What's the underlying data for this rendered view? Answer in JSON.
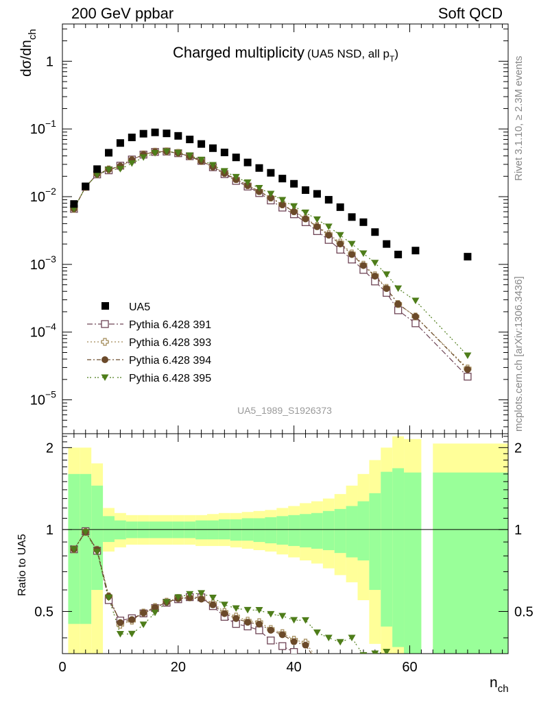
{
  "header": {
    "left": "200 GeV ppbar",
    "right": "Soft QCD",
    "rivet": "Rivet 3.1.10, ≥ 2.3M events",
    "mcplots": "mcplots.cern.ch [arXiv:1306.3436]",
    "analysis": "UA5_1989_S1926373"
  },
  "chart_data": {
    "type": "scatter",
    "title": "Charged multiplicity",
    "title_note": "(UA5 NSD, all p",
    "title_note_sub": "T",
    "title_note_end": ")",
    "main_ylabel": "dσ/dn",
    "main_ylabel_sub": "ch",
    "xlabel": "n",
    "xlabel_sub": "ch",
    "ratio_ylabel": "Ratio to UA5",
    "xlim": [
      0,
      77
    ],
    "main_ylim_log10": [
      -5.5,
      0.55
    ],
    "ratio_ylim": [
      0.35,
      2.25
    ],
    "x_ticks": [
      "0",
      "20",
      "40",
      "60"
    ],
    "x_tick_values": [
      0,
      20,
      40,
      60
    ],
    "main_y_ticks": [
      {
        "v": 0,
        "base": "1",
        "exp": ""
      },
      {
        "v": -1,
        "base": "10",
        "exp": "−1"
      },
      {
        "v": -2,
        "base": "10",
        "exp": "−2"
      },
      {
        "v": -3,
        "base": "10",
        "exp": "−3"
      },
      {
        "v": -4,
        "base": "10",
        "exp": "−4"
      },
      {
        "v": -5,
        "base": "10",
        "exp": "−5"
      }
    ],
    "ratio_y_ticks": [
      {
        "v": 0.5,
        "label": "0.5"
      },
      {
        "v": 1,
        "label": "1"
      },
      {
        "v": 2,
        "label": "2"
      }
    ],
    "data": {
      "name": "UA5",
      "x": [
        2,
        4,
        6,
        8,
        10,
        12,
        14,
        16,
        18,
        20,
        22,
        24,
        26,
        28,
        30,
        32,
        34,
        36,
        38,
        40,
        42,
        44,
        46,
        48,
        50,
        52,
        54,
        56,
        58,
        61,
        70
      ],
      "y": [
        0.0078,
        0.0142,
        0.0255,
        0.0445,
        0.062,
        0.075,
        0.085,
        0.089,
        0.086,
        0.079,
        0.07,
        0.06,
        0.052,
        0.045,
        0.038,
        0.032,
        0.0265,
        0.0225,
        0.0185,
        0.0155,
        0.0125,
        0.011,
        0.009,
        0.007,
        0.005,
        0.0042,
        0.003,
        0.002,
        0.0014,
        0.0016,
        0.0013
      ]
    },
    "series": [
      {
        "name": "Pythia 6.428 391",
        "color": "#6d4354",
        "marker": "open-square",
        "dash": "8,3,2,3",
        "x": [
          2,
          4,
          6,
          8,
          10,
          12,
          14,
          16,
          18,
          20,
          22,
          24,
          26,
          28,
          30,
          32,
          34,
          36,
          38,
          40,
          42,
          44,
          46,
          48,
          50,
          52,
          54,
          56,
          58,
          61,
          70
        ],
        "y": [
          0.0066,
          0.014,
          0.0213,
          0.0245,
          0.0287,
          0.0354,
          0.0418,
          0.0458,
          0.0463,
          0.0438,
          0.0395,
          0.0338,
          0.0272,
          0.0215,
          0.0171,
          0.0141,
          0.0113,
          0.0088,
          0.0069,
          0.0055,
          0.0042,
          0.0031,
          0.0023,
          0.00165,
          0.00118,
          0.00083,
          0.00056,
          0.00038,
          0.00021,
          0.000135,
          2.2e-05
        ]
      },
      {
        "name": "Pythia 6.428 393",
        "color": "#a08855",
        "marker": "open-cross",
        "dash": "2,3",
        "x": [
          2,
          4,
          6,
          8,
          10,
          12,
          14,
          16,
          18,
          20,
          22,
          24,
          26,
          28,
          30,
          32,
          34,
          36,
          38,
          40,
          42,
          44,
          46,
          48,
          50,
          52,
          54,
          56,
          58,
          61,
          70
        ],
        "y": [
          0.0066,
          0.0139,
          0.0215,
          0.0253,
          0.0277,
          0.0347,
          0.0421,
          0.0462,
          0.0467,
          0.0443,
          0.0395,
          0.0336,
          0.0279,
          0.0224,
          0.0182,
          0.0148,
          0.0121,
          0.0097,
          0.0077,
          0.0061,
          0.0048,
          0.0037,
          0.0028,
          0.0021,
          0.00145,
          0.00099,
          0.00069,
          0.00045,
          0.00026,
          0.00017,
          2.9e-05
        ]
      },
      {
        "name": "Pythia 6.428 394",
        "color": "#6b4a2a",
        "marker": "filled-circle",
        "dash": "6,3,2,3",
        "x": [
          2,
          4,
          6,
          8,
          10,
          12,
          14,
          16,
          18,
          20,
          22,
          24,
          26,
          28,
          30,
          32,
          34,
          36,
          38,
          40,
          42,
          44,
          46,
          48,
          50,
          52,
          54,
          56,
          58,
          61,
          70
        ],
        "y": [
          0.0066,
          0.0139,
          0.0215,
          0.0253,
          0.0282,
          0.035,
          0.042,
          0.046,
          0.0465,
          0.044,
          0.0393,
          0.0333,
          0.0275,
          0.0221,
          0.0179,
          0.0146,
          0.0119,
          0.0096,
          0.0076,
          0.006,
          0.0047,
          0.0036,
          0.0027,
          0.002,
          0.0014,
          0.00096,
          0.00067,
          0.00044,
          0.00026,
          0.00017,
          2.8e-05
        ]
      },
      {
        "name": "Pythia 6.428 395",
        "color": "#4e7d1a",
        "marker": "filled-triangle-down",
        "dash": "2,2,2,5",
        "x": [
          2,
          4,
          6,
          8,
          10,
          12,
          14,
          16,
          18,
          20,
          22,
          24,
          26,
          28,
          30,
          32,
          34,
          36,
          38,
          40,
          42,
          44,
          46,
          48,
          50,
          52,
          54,
          56,
          58,
          61,
          70
        ],
        "y": [
          0.0066,
          0.0139,
          0.0211,
          0.025,
          0.0256,
          0.031,
          0.038,
          0.044,
          0.0465,
          0.0445,
          0.0405,
          0.035,
          0.0292,
          0.0238,
          0.0195,
          0.0162,
          0.0134,
          0.011,
          0.0089,
          0.0072,
          0.0058,
          0.0046,
          0.0036,
          0.0027,
          0.002,
          0.00145,
          0.00105,
          0.00071,
          0.00044,
          0.00029,
          4.5e-05
        ]
      }
    ],
    "uncertainty_bands": {
      "bins": [
        [
          1,
          3
        ],
        [
          3,
          5
        ],
        [
          5,
          7
        ],
        [
          7,
          9
        ],
        [
          9,
          11
        ],
        [
          11,
          13
        ],
        [
          13,
          15
        ],
        [
          15,
          17
        ],
        [
          17,
          19
        ],
        [
          19,
          21
        ],
        [
          21,
          23
        ],
        [
          23,
          25
        ],
        [
          25,
          27
        ],
        [
          27,
          29
        ],
        [
          29,
          31
        ],
        [
          31,
          33
        ],
        [
          33,
          35
        ],
        [
          35,
          37
        ],
        [
          37,
          39
        ],
        [
          39,
          41
        ],
        [
          41,
          43
        ],
        [
          43,
          45
        ],
        [
          45,
          47
        ],
        [
          47,
          49
        ],
        [
          49,
          51
        ],
        [
          51,
          53
        ],
        [
          53,
          55
        ],
        [
          55,
          57
        ],
        [
          57,
          59
        ],
        [
          59,
          62
        ],
        [
          64,
          77
        ]
      ],
      "green": [
        [
          0.45,
          1.6
        ],
        [
          0.45,
          1.6
        ],
        [
          0.6,
          1.45
        ],
        [
          0.9,
          1.12
        ],
        [
          0.92,
          1.08
        ],
        [
          0.93,
          1.07
        ],
        [
          0.93,
          1.07
        ],
        [
          0.93,
          1.07
        ],
        [
          0.93,
          1.07
        ],
        [
          0.93,
          1.07
        ],
        [
          0.93,
          1.07
        ],
        [
          0.92,
          1.08
        ],
        [
          0.92,
          1.08
        ],
        [
          0.92,
          1.09
        ],
        [
          0.91,
          1.09
        ],
        [
          0.91,
          1.1
        ],
        [
          0.9,
          1.1
        ],
        [
          0.89,
          1.11
        ],
        [
          0.88,
          1.12
        ],
        [
          0.87,
          1.13
        ],
        [
          0.86,
          1.14
        ],
        [
          0.85,
          1.15
        ],
        [
          0.84,
          1.17
        ],
        [
          0.82,
          1.19
        ],
        [
          0.79,
          1.22
        ],
        [
          0.77,
          1.27
        ],
        [
          0.6,
          1.36
        ],
        [
          0.44,
          1.63
        ],
        [
          0.37,
          1.68
        ],
        [
          0.33,
          1.62
        ],
        [
          0.35,
          1.62
        ]
      ],
      "yellow": [
        [
          0.3,
          2.0
        ],
        [
          0.3,
          2.0
        ],
        [
          0.3,
          1.75
        ],
        [
          0.83,
          1.2
        ],
        [
          0.86,
          1.15
        ],
        [
          0.88,
          1.13
        ],
        [
          0.88,
          1.13
        ],
        [
          0.88,
          1.13
        ],
        [
          0.88,
          1.13
        ],
        [
          0.88,
          1.13
        ],
        [
          0.88,
          1.13
        ],
        [
          0.87,
          1.13
        ],
        [
          0.87,
          1.14
        ],
        [
          0.87,
          1.15
        ],
        [
          0.86,
          1.15
        ],
        [
          0.85,
          1.16
        ],
        [
          0.84,
          1.17
        ],
        [
          0.83,
          1.18
        ],
        [
          0.81,
          1.2
        ],
        [
          0.79,
          1.22
        ],
        [
          0.77,
          1.25
        ],
        [
          0.75,
          1.27
        ],
        [
          0.72,
          1.3
        ],
        [
          0.68,
          1.35
        ],
        [
          0.64,
          1.45
        ],
        [
          0.55,
          1.6
        ],
        [
          0.38,
          1.8
        ],
        [
          0.35,
          2.0
        ],
        [
          0.35,
          2.2
        ],
        [
          0.33,
          2.15
        ],
        [
          0.35,
          2.07
        ]
      ]
    }
  }
}
